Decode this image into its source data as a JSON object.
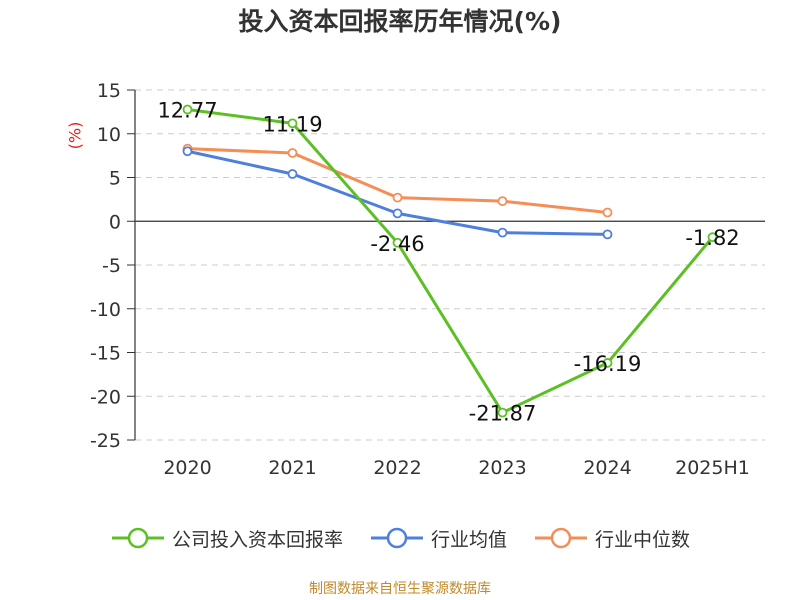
{
  "chart_data": {
    "type": "line",
    "title": "投入资本回报率历年情况(%)",
    "ylabel": "(%)",
    "categories": [
      "2020",
      "2021",
      "2022",
      "2023",
      "2024",
      "2025H1"
    ],
    "ylim": [
      -25,
      15
    ],
    "yticks": [
      15,
      10,
      5,
      0,
      -5,
      -10,
      -15,
      -20,
      -25
    ],
    "ytick_labels": [
      "15",
      "10",
      "5",
      "0",
      "-5",
      "-10",
      "-15",
      "-20",
      "-25"
    ],
    "grid": true,
    "legend_position": "bottom",
    "series": [
      {
        "name": "公司投入资本回报率",
        "color": "#5cc025",
        "values": [
          12.77,
          11.19,
          -2.46,
          -21.87,
          -16.19,
          -1.82
        ],
        "data_labels": [
          "12.77",
          "11.19",
          "-2.46",
          "-21.87",
          "-16.19",
          "-1.82"
        ]
      },
      {
        "name": "行业均值",
        "color": "#4f7fdd",
        "values": [
          8.0,
          5.4,
          0.9,
          -1.3,
          -1.5,
          null
        ]
      },
      {
        "name": "行业中位数",
        "color": "#f58d56",
        "values": [
          8.3,
          7.8,
          2.7,
          2.3,
          1.0,
          null
        ]
      }
    ]
  },
  "source": "制图数据来自恒生聚源数据库"
}
